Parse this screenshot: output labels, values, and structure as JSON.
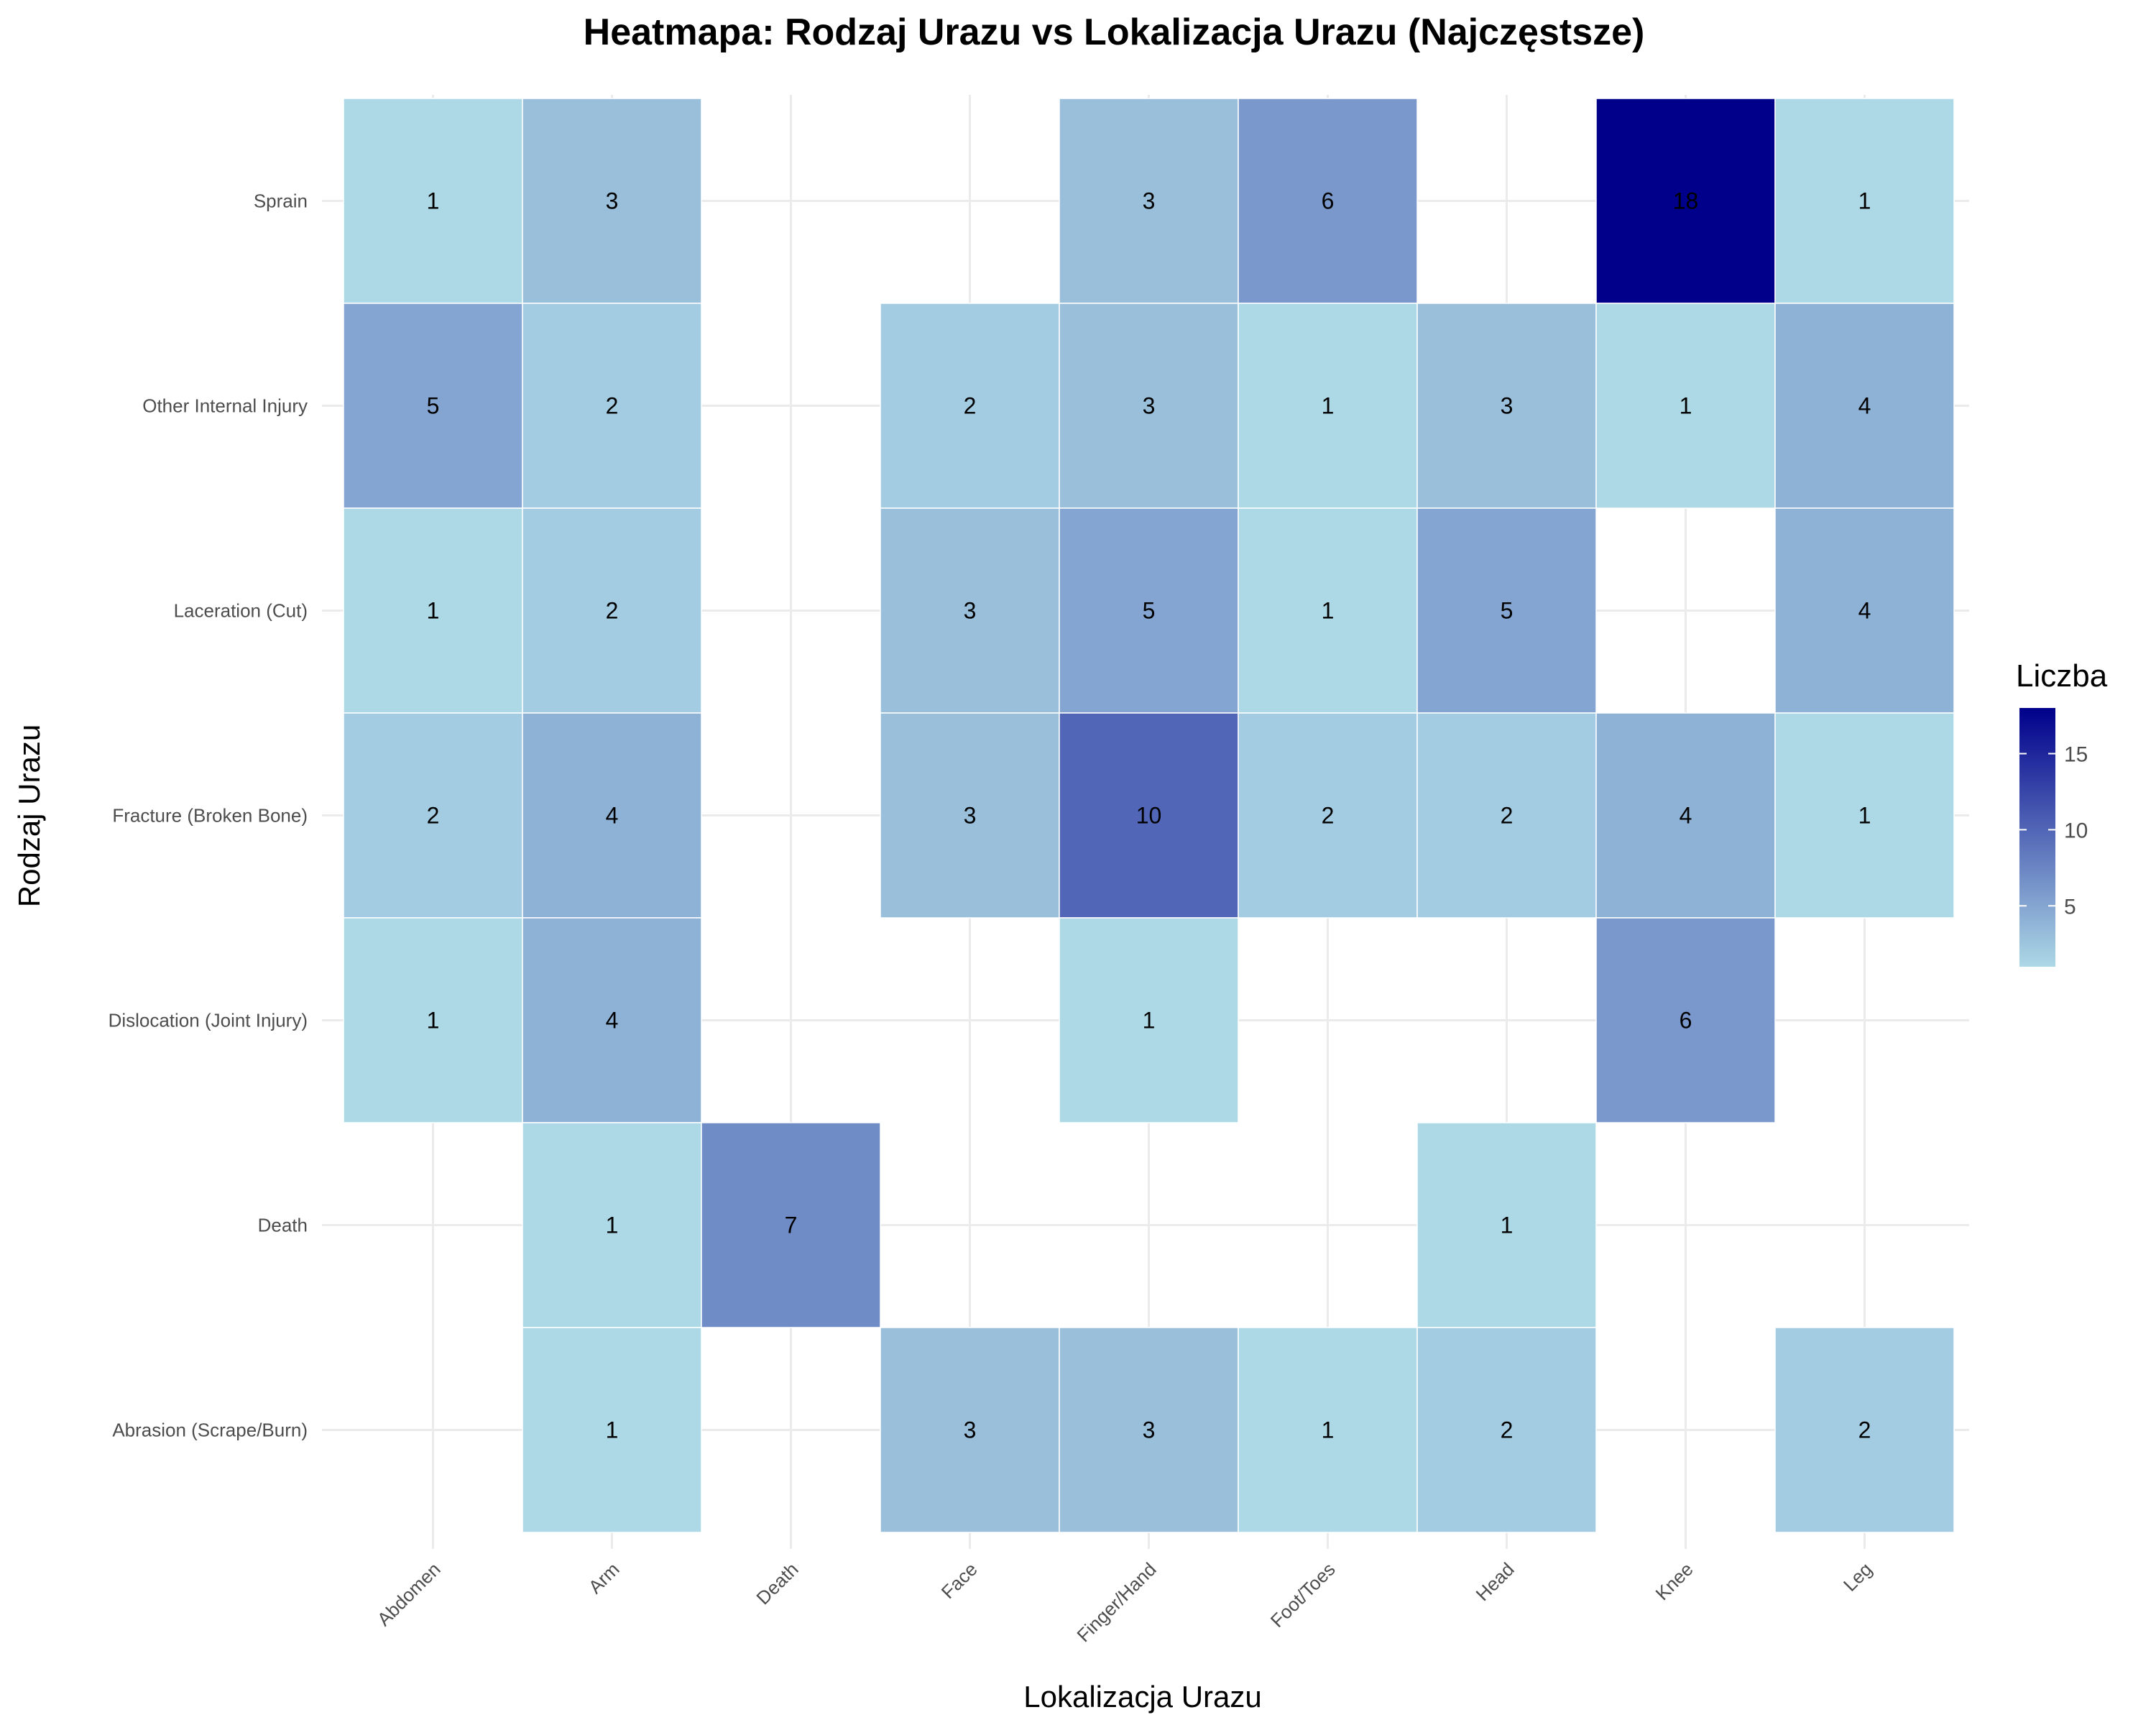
{
  "chart_data": {
    "type": "heatmap",
    "title": "Heatmapa: Rodzaj Urazu vs Lokalizacja Urazu (Najczęstsze)",
    "xlabel": "Lokalizacja Urazu",
    "ylabel": "Rodzaj Urazu",
    "x_categories": [
      "Abdomen",
      "Arm",
      "Death",
      "Face",
      "Finger/Hand",
      "Foot/Toes",
      "Head",
      "Knee",
      "Leg"
    ],
    "y_categories": [
      "Sprain",
      "Other Internal Injury",
      "Laceration (Cut)",
      "Fracture (Broken Bone)",
      "Dislocation (Joint Injury)",
      "Death",
      "Abrasion (Scrape/Burn)"
    ],
    "values": [
      [
        1,
        3,
        null,
        null,
        3,
        6,
        null,
        18,
        1
      ],
      [
        5,
        2,
        null,
        2,
        3,
        1,
        3,
        1,
        4
      ],
      [
        1,
        2,
        null,
        3,
        5,
        1,
        5,
        null,
        4
      ],
      [
        2,
        4,
        null,
        3,
        10,
        2,
        2,
        4,
        1
      ],
      [
        1,
        4,
        null,
        null,
        1,
        null,
        null,
        6,
        null
      ],
      [
        null,
        1,
        7,
        null,
        null,
        null,
        1,
        null,
        null
      ],
      [
        null,
        1,
        null,
        3,
        3,
        1,
        2,
        null,
        2
      ]
    ],
    "legend": {
      "title": "Liczba",
      "ticks": [
        5,
        10,
        15
      ],
      "range": [
        1,
        18
      ],
      "low_color": "#add8e6",
      "high_color": "#00008b",
      "placement": "right"
    },
    "grid": true
  }
}
